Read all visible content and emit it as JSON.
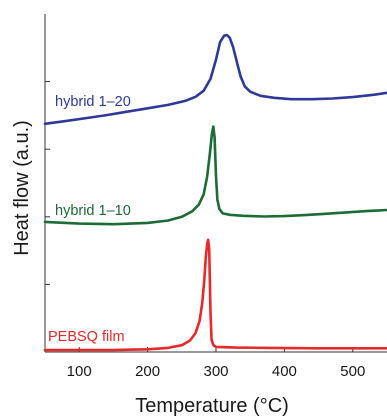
{
  "chart_data": {
    "type": "line",
    "xlabel": "Temperature (°C)",
    "ylabel": "Heat flow (a.u.)",
    "xlim": [
      50,
      550
    ],
    "ylim": [
      0,
      100
    ],
    "x_ticks": [
      100,
      200,
      300,
      400,
      500
    ],
    "y_ticks": [
      20,
      40,
      60,
      80
    ],
    "grid": false,
    "series": [
      {
        "name": "hybrid 1–20",
        "color": "#2e3a9a",
        "x": [
          50,
          80,
          110,
          140,
          170,
          200,
          230,
          255,
          270,
          282,
          292,
          300,
          306,
          312,
          316,
          320,
          325,
          330,
          336,
          342,
          350,
          365,
          385,
          410,
          440,
          470,
          500,
          530,
          550
        ],
        "y": [
          67.5,
          68.3,
          69.2,
          70.1,
          71.1,
          72.1,
          73.1,
          74.3,
          75.5,
          77.3,
          80.8,
          86.5,
          91.7,
          93.6,
          93.8,
          93.0,
          90.2,
          86.2,
          81.5,
          78.6,
          77.0,
          75.8,
          75.2,
          74.8,
          74.8,
          75.0,
          75.4,
          76.1,
          76.7
        ]
      },
      {
        "name": "hybrid 1–10",
        "color": "#1d6b35",
        "x": [
          50,
          100,
          150,
          200,
          230,
          250,
          265,
          275,
          282,
          287,
          291,
          294,
          296,
          298,
          300,
          302,
          305,
          310,
          320,
          340,
          370,
          400,
          430,
          460,
          490,
          520,
          550
        ],
        "y": [
          38.5,
          38.0,
          37.8,
          38.2,
          38.9,
          40.0,
          41.6,
          43.6,
          46.7,
          51.8,
          58.5,
          64.5,
          66.7,
          63.5,
          52.0,
          45.0,
          42.3,
          41.0,
          40.6,
          40.3,
          40.1,
          40.2,
          40.5,
          40.9,
          41.3,
          41.7,
          42.0
        ]
      },
      {
        "name": "PEBSQ film",
        "color": "#e8282a",
        "x": [
          50,
          100,
          150,
          200,
          230,
          250,
          262,
          270,
          276,
          280,
          283,
          285,
          287,
          288.5,
          290,
          292,
          293.5,
          296,
          300,
          330,
          380,
          450,
          520,
          550
        ],
        "y": [
          0.6,
          0.6,
          0.6,
          0.8,
          1.2,
          2.0,
          3.4,
          5.6,
          9.2,
          14.7,
          21.6,
          27.7,
          31.8,
          33.2,
          30.5,
          11.5,
          3.5,
          2.1,
          1.5,
          1.3,
          1.2,
          1.1,
          1.1,
          1.1
        ]
      }
    ]
  }
}
